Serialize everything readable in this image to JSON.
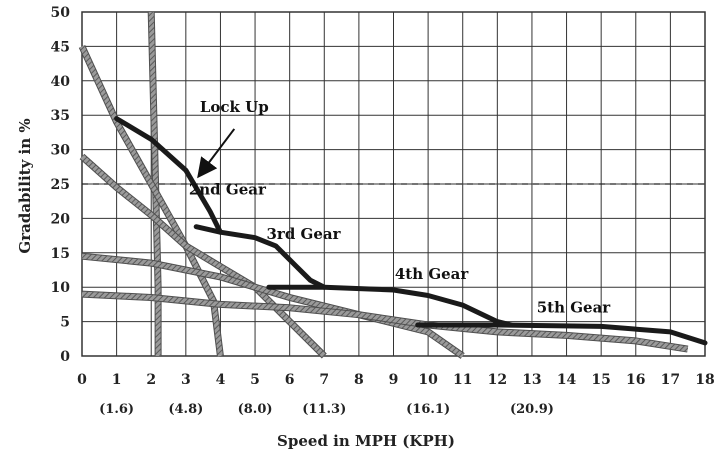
{
  "chart_data": {
    "type": "line",
    "xlabel": "Speed in MPH (KPH)",
    "ylabel": "Gradability in %",
    "xlim": [
      0,
      18
    ],
    "ylim": [
      0,
      50
    ],
    "x_ticks": [
      "0",
      "1",
      "2",
      "3",
      "4",
      "5",
      "6",
      "7",
      "8",
      "9",
      "10",
      "11",
      "12",
      "13",
      "14",
      "15",
      "16",
      "17",
      "18"
    ],
    "y_ticks": [
      "0",
      "5",
      "10",
      "15",
      "20",
      "25",
      "30",
      "35",
      "40",
      "45",
      "50"
    ],
    "kph_labels": [
      {
        "x": 1,
        "text": "(1.6)"
      },
      {
        "x": 3,
        "text": "(4.8)"
      },
      {
        "x": 5,
        "text": "(8.0)"
      },
      {
        "x": 7,
        "text": "(11.3)"
      },
      {
        "x": 10,
        "text": "(16.1)"
      },
      {
        "x": 13,
        "text": "(20.9)"
      }
    ],
    "grid": true,
    "reference_line": {
      "y": 25,
      "style": "dashed"
    },
    "gear_curves": [
      {
        "label": "",
        "points": [
          [
            1.0,
            34.5
          ],
          [
            2.0,
            31.5
          ],
          [
            3.0,
            27
          ],
          [
            3.7,
            21
          ],
          [
            4.0,
            18
          ]
        ]
      },
      {
        "label": "",
        "points": [
          [
            3.3,
            18.8
          ],
          [
            4.0,
            18
          ],
          [
            5.0,
            17.2
          ],
          [
            5.6,
            16
          ],
          [
            6.2,
            13
          ],
          [
            6.6,
            11
          ],
          [
            7.0,
            10
          ]
        ]
      },
      {
        "label": "",
        "points": [
          [
            5.4,
            10
          ],
          [
            7.0,
            10
          ],
          [
            9.0,
            9.6
          ],
          [
            10.0,
            8.8
          ],
          [
            11.0,
            7.4
          ],
          [
            12.0,
            5.0
          ],
          [
            12.4,
            4.5
          ]
        ]
      },
      {
        "label": "",
        "points": [
          [
            9.7,
            4.5
          ],
          [
            12.0,
            4.5
          ],
          [
            15.0,
            4.3
          ],
          [
            17.0,
            3.5
          ],
          [
            18.0,
            1.9
          ]
        ]
      }
    ],
    "resistance_curves": [
      {
        "label": "",
        "points": [
          [
            2.0,
            52
          ],
          [
            2.1,
            30
          ],
          [
            2.2,
            10
          ],
          [
            2.2,
            0
          ]
        ]
      },
      {
        "label": "",
        "points": [
          [
            0,
            45
          ],
          [
            1.0,
            34
          ],
          [
            2.0,
            25
          ],
          [
            3.0,
            16
          ],
          [
            3.8,
            8
          ],
          [
            4.0,
            0
          ]
        ]
      },
      {
        "label": "",
        "points": [
          [
            0,
            29
          ],
          [
            1.0,
            24.5
          ],
          [
            2.0,
            20.5
          ],
          [
            3.0,
            16
          ],
          [
            4.0,
            13
          ],
          [
            5.0,
            10
          ],
          [
            6.0,
            5
          ],
          [
            7.0,
            0
          ]
        ]
      },
      {
        "label": "",
        "points": [
          [
            0,
            14.5
          ],
          [
            2.0,
            13.5
          ],
          [
            4.0,
            11.5
          ],
          [
            6.0,
            8.5
          ],
          [
            8.0,
            6
          ],
          [
            10.0,
            3.5
          ],
          [
            11.0,
            0
          ]
        ]
      },
      {
        "label": "",
        "points": [
          [
            0,
            9
          ],
          [
            2.0,
            8.5
          ],
          [
            4.0,
            7.5
          ],
          [
            6.0,
            7
          ],
          [
            8.0,
            6
          ],
          [
            10.0,
            4.5
          ],
          [
            12.0,
            3.5
          ],
          [
            14.0,
            3
          ],
          [
            16.0,
            2.2
          ],
          [
            17.5,
            1
          ]
        ]
      }
    ],
    "annotations": [
      {
        "text": "Lock Up",
        "x": 4.4,
        "y": 35.5
      },
      {
        "text": "2nd Gear",
        "x": 4.2,
        "y": 23.5
      },
      {
        "text": "3rd Gear",
        "x": 6.4,
        "y": 17
      },
      {
        "text": "4th Gear",
        "x": 10.1,
        "y": 11.2
      },
      {
        "text": "5th Gear",
        "x": 14.2,
        "y": 6.3
      }
    ],
    "lockup_arrow": {
      "from": [
        4.4,
        33
      ],
      "to": [
        3.5,
        27
      ]
    }
  }
}
